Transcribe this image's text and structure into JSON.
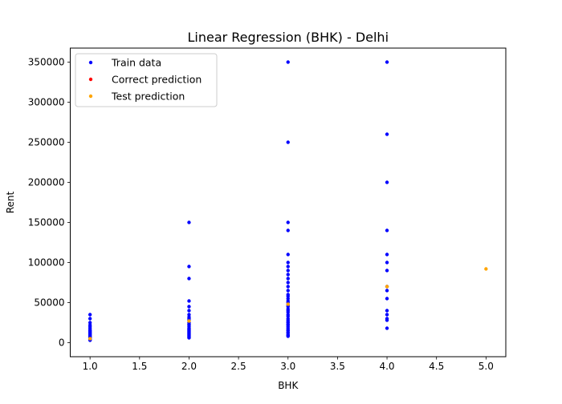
{
  "chart_data": {
    "type": "scatter",
    "title": "Linear Regression (BHK) - Delhi",
    "xlabel": "BHK",
    "ylabel": "Rent",
    "xlim": [
      0.8,
      5.2
    ],
    "ylim": [
      -17500,
      367500
    ],
    "xticks": [
      1.0,
      1.5,
      2.0,
      2.5,
      3.0,
      3.5,
      4.0,
      4.5,
      5.0
    ],
    "xtick_labels": [
      "1.0",
      "1.5",
      "2.0",
      "2.5",
      "3.0",
      "3.5",
      "4.0",
      "4.5",
      "5.0"
    ],
    "yticks": [
      0,
      50000,
      100000,
      150000,
      200000,
      250000,
      300000,
      350000
    ],
    "ytick_labels": [
      "0",
      "50000",
      "100000",
      "150000",
      "200000",
      "250000",
      "300000",
      "350000"
    ],
    "grid": false,
    "legend_position": "upper-left",
    "series": [
      {
        "name": "Train data",
        "color": "#0000ff",
        "points": [
          [
            1,
            35000
          ],
          [
            1,
            30000
          ],
          [
            1,
            25000
          ],
          [
            1,
            22000
          ],
          [
            1,
            20000
          ],
          [
            1,
            18000
          ],
          [
            1,
            16000
          ],
          [
            1,
            15000
          ],
          [
            1,
            14000
          ],
          [
            1,
            13000
          ],
          [
            1,
            12000
          ],
          [
            1,
            11000
          ],
          [
            1,
            10000
          ],
          [
            1,
            9000
          ],
          [
            1,
            8000
          ],
          [
            1,
            7000
          ],
          [
            1,
            6000
          ],
          [
            1,
            5000
          ],
          [
            1,
            4000
          ],
          [
            1,
            3000
          ],
          [
            2,
            150000
          ],
          [
            2,
            95000
          ],
          [
            2,
            80000
          ],
          [
            2,
            52000
          ],
          [
            2,
            45000
          ],
          [
            2,
            40000
          ],
          [
            2,
            35000
          ],
          [
            2,
            32000
          ],
          [
            2,
            30000
          ],
          [
            2,
            28000
          ],
          [
            2,
            25000
          ],
          [
            2,
            23000
          ],
          [
            2,
            22000
          ],
          [
            2,
            20000
          ],
          [
            2,
            18000
          ],
          [
            2,
            17000
          ],
          [
            2,
            16000
          ],
          [
            2,
            15000
          ],
          [
            2,
            14000
          ],
          [
            2,
            13000
          ],
          [
            2,
            12000
          ],
          [
            2,
            11000
          ],
          [
            2,
            10000
          ],
          [
            2,
            9000
          ],
          [
            2,
            8000
          ],
          [
            2,
            7000
          ],
          [
            2,
            6000
          ],
          [
            3,
            350000
          ],
          [
            3,
            250000
          ],
          [
            3,
            150000
          ],
          [
            3,
            140000
          ],
          [
            3,
            110000
          ],
          [
            3,
            100000
          ],
          [
            3,
            95000
          ],
          [
            3,
            90000
          ],
          [
            3,
            85000
          ],
          [
            3,
            80000
          ],
          [
            3,
            75000
          ],
          [
            3,
            70000
          ],
          [
            3,
            65000
          ],
          [
            3,
            60000
          ],
          [
            3,
            58000
          ],
          [
            3,
            55000
          ],
          [
            3,
            52000
          ],
          [
            3,
            50000
          ],
          [
            3,
            47000
          ],
          [
            3,
            45000
          ],
          [
            3,
            42000
          ],
          [
            3,
            40000
          ],
          [
            3,
            38000
          ],
          [
            3,
            35000
          ],
          [
            3,
            33000
          ],
          [
            3,
            30000
          ],
          [
            3,
            28000
          ],
          [
            3,
            26000
          ],
          [
            3,
            25000
          ],
          [
            3,
            23000
          ],
          [
            3,
            22000
          ],
          [
            3,
            20000
          ],
          [
            3,
            18000
          ],
          [
            3,
            16000
          ],
          [
            3,
            15000
          ],
          [
            3,
            13000
          ],
          [
            3,
            12000
          ],
          [
            3,
            10000
          ],
          [
            3,
            9000
          ],
          [
            3,
            8000
          ],
          [
            4,
            350000
          ],
          [
            4,
            260000
          ],
          [
            4,
            200000
          ],
          [
            4,
            140000
          ],
          [
            4,
            110000
          ],
          [
            4,
            100000
          ],
          [
            4,
            90000
          ],
          [
            4,
            70000
          ],
          [
            4,
            65000
          ],
          [
            4,
            55000
          ],
          [
            4,
            40000
          ],
          [
            4,
            35000
          ],
          [
            4,
            30000
          ],
          [
            4,
            28000
          ],
          [
            4,
            18000
          ]
        ]
      },
      {
        "name": "Correct prediction",
        "color": "#ff0000",
        "points": []
      },
      {
        "name": "Test prediction",
        "color": "#ffa500",
        "points": [
          [
            1,
            5000
          ],
          [
            2,
            27000
          ],
          [
            3,
            48000
          ],
          [
            4,
            70000
          ],
          [
            5,
            92000
          ]
        ]
      }
    ]
  }
}
